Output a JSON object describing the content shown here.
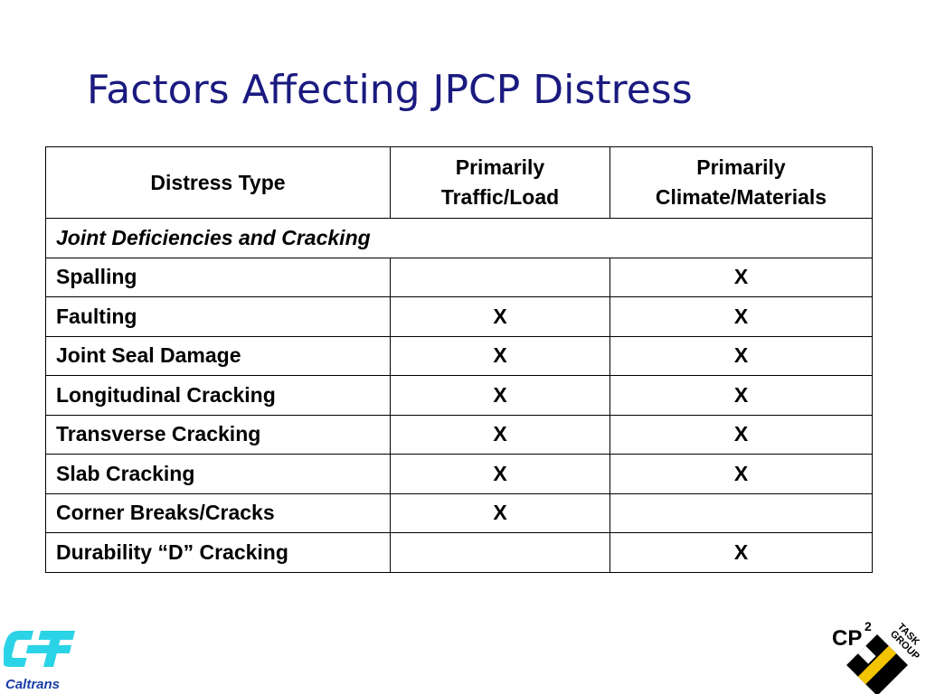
{
  "title": "Factors Affecting JPCP Distress",
  "table": {
    "headers": [
      "Distress Type",
      "Primarily Traffic/Load",
      "Primarily Climate/Materials"
    ],
    "header_lines": [
      [
        "Distress Type"
      ],
      [
        "Primarily",
        "Traffic/Load"
      ],
      [
        "Primarily",
        "Climate/Materials"
      ]
    ],
    "section": "Joint Deficiencies and Cracking",
    "rows": [
      {
        "type": "Spalling",
        "traffic": "",
        "climate": "X"
      },
      {
        "type": "Faulting",
        "traffic": "X",
        "climate": "X"
      },
      {
        "type": "Joint Seal Damage",
        "traffic": "X",
        "climate": "X"
      },
      {
        "type": "Longitudinal Cracking",
        "traffic": "X",
        "climate": "X"
      },
      {
        "type": "Transverse Cracking",
        "traffic": "X",
        "climate": "X"
      },
      {
        "type": "Slab Cracking",
        "traffic": "X",
        "climate": "X"
      },
      {
        "type": "Corner Breaks/Cracks",
        "traffic": "X",
        "climate": ""
      },
      {
        "type": "Durability “D” Cracking",
        "traffic": "",
        "climate": "X"
      }
    ]
  },
  "logos": {
    "left": {
      "wordmark": "Caltrans",
      "color": "#2bd3e6"
    },
    "right": {
      "text": "CP",
      "superscript": "2",
      "tag_top": "TASK",
      "tag_bottom": "GROUP"
    }
  },
  "colors": {
    "title": "#1a1a80",
    "border": "#000000"
  }
}
